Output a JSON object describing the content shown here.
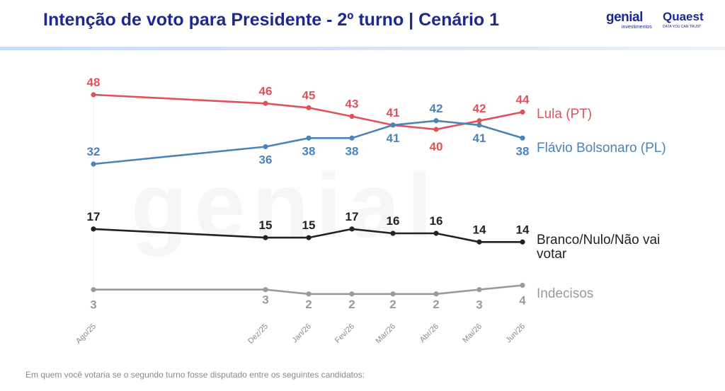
{
  "header": {
    "title": "Intenção de voto para Presidente - 2º turno | Cenário 1",
    "logo_genial": "genial",
    "logo_genial_sub": "investimentos",
    "logo_quaest": "Quaest",
    "logo_quaest_sub": "DATA YOU CAN TRUST"
  },
  "watermark": "genial",
  "footnote": "Em quem você votaria se o segundo turno fosse disputado entre os seguintes candidatos:",
  "chart_data": {
    "type": "line",
    "x": [
      "Ago/25",
      "Dez/25",
      "Jan/26",
      "Fev/26",
      "Mar/26",
      "Abr/26",
      "Mai/26",
      "Jun/26"
    ],
    "series": [
      {
        "name": "Lula (PT)",
        "color": "#e0525a",
        "values": [
          48,
          46,
          45,
          43,
          41,
          40,
          42,
          44
        ]
      },
      {
        "name": "Flávio Bolsonaro (PL)",
        "color": "#4a84b8",
        "values": [
          32,
          36,
          38,
          38,
          41,
          42,
          41,
          38
        ]
      },
      {
        "name": "Branco/Nulo/Não vai votar",
        "color": "#222222",
        "values": [
          17,
          15,
          15,
          17,
          16,
          16,
          14,
          14
        ]
      },
      {
        "name": "Indecisos",
        "color": "#9a9a9a",
        "values": [
          3,
          3,
          2,
          2,
          2,
          2,
          3,
          4
        ]
      }
    ],
    "ylim": [
      0,
      48
    ],
    "grid": false,
    "legend": "right, inline at line ends"
  }
}
